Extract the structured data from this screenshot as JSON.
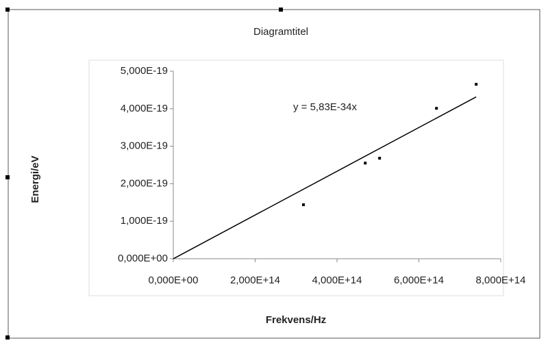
{
  "chart_data": {
    "type": "scatter",
    "title": "Diagramtitel",
    "x_label": "Frekvens/Hz",
    "y_label": "Energi/eV",
    "x": [
      318000000000000.0,
      469000000000000.0,
      504000000000000.0,
      643000000000000.0,
      740000000000000.0
    ],
    "values": [
      1.44e-19,
      2.55e-19,
      2.68e-19,
      4.01e-19,
      4.65e-19
    ],
    "color": "#000000",
    "trendline": {
      "label": "y = 5,83E-34x",
      "slope": 5.83e-34
    },
    "xlim": [
      0,
      800000000000000.0
    ],
    "xticks": [
      {
        "value": 0,
        "label": "0,000E+00"
      },
      {
        "value": 200000000000000.0,
        "label": "2,000E+14"
      },
      {
        "value": 400000000000000.0,
        "label": "4,000E+14"
      },
      {
        "value": 600000000000000.0,
        "label": "6,000E+14"
      },
      {
        "value": 800000000000000.0,
        "label": "8,000E+14"
      }
    ],
    "ylim": [
      0,
      5e-19
    ],
    "yticks": [
      {
        "value": 0,
        "label": "0,000E+00"
      },
      {
        "value": 1e-19,
        "label": "1,000E-19"
      },
      {
        "value": 2e-19,
        "label": "2,000E-19"
      },
      {
        "value": 3e-19,
        "label": "3,000E-19"
      },
      {
        "value": 4e-19,
        "label": "4,000E-19"
      },
      {
        "value": 5e-19,
        "label": "5,000E-19"
      }
    ]
  }
}
